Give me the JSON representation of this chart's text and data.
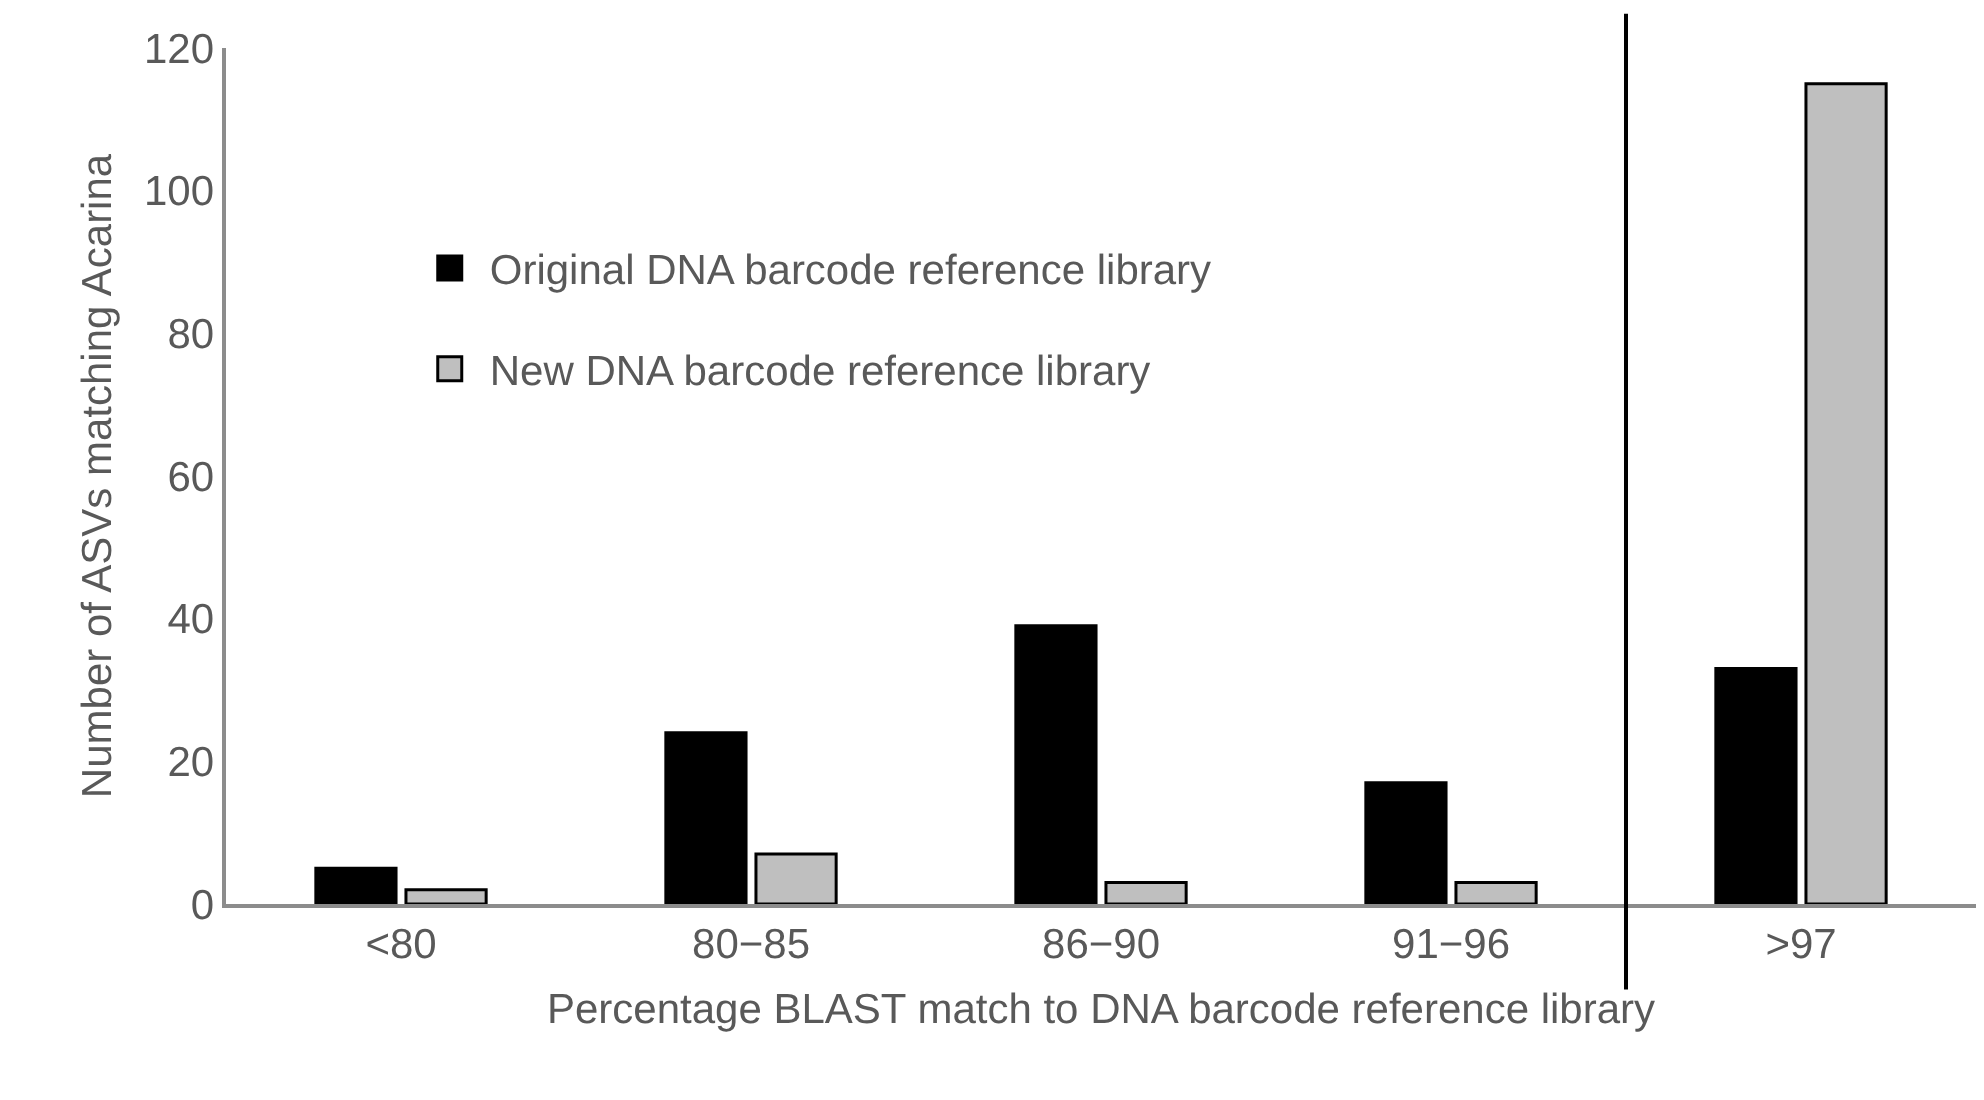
{
  "chart_data": {
    "type": "bar",
    "xlabel": "Percentage BLAST match to DNA barcode reference library",
    "ylabel": "Number of ASVs matching Acarina",
    "categories": [
      "<80",
      "80−85",
      "86−90",
      "91−96",
      ">97"
    ],
    "series": [
      {
        "name": "Original DNA barcode reference library",
        "color": "#000000",
        "values": [
          5,
          24,
          39,
          17,
          33
        ]
      },
      {
        "name": "New DNA barcode reference library",
        "color": "#bfbfbf",
        "values": [
          2,
          7,
          3,
          3,
          115
        ]
      }
    ],
    "ylim": [
      0,
      120
    ],
    "yticks": [
      0,
      20,
      40,
      60,
      80,
      100,
      120
    ],
    "grid": false,
    "legend": "top left"
  }
}
